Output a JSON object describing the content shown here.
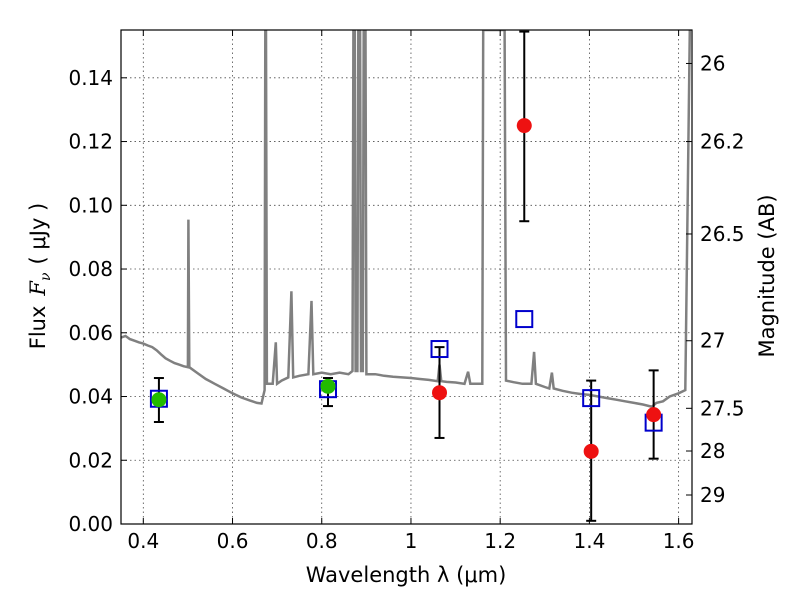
{
  "chart_data": {
    "type": "scatter",
    "xlabel": "Wavelength  λ (μm)",
    "ylabel": "Flux  F_ν  ( μJy )",
    "ylabel_parts": {
      "prefix": "Flux",
      "symbol": "F",
      "subscript": "ν",
      "unit": "( μJy )"
    },
    "y2label": "Magnitude (AB)",
    "xlim": [
      0.35,
      1.63
    ],
    "ylim": [
      0.0,
      0.155
    ],
    "grid": true,
    "x_ticks": [
      {
        "value": 0.4,
        "label": "0.4"
      },
      {
        "value": 0.6,
        "label": "0.6"
      },
      {
        "value": 0.8,
        "label": "0.8"
      },
      {
        "value": 1.0,
        "label": "1"
      },
      {
        "value": 1.2,
        "label": "1.2"
      },
      {
        "value": 1.4,
        "label": "1.4"
      },
      {
        "value": 1.6,
        "label": "1.6"
      }
    ],
    "y_ticks": [
      {
        "value": 0.0,
        "label": "0.00"
      },
      {
        "value": 0.02,
        "label": "0.02"
      },
      {
        "value": 0.04,
        "label": "0.04"
      },
      {
        "value": 0.06,
        "label": "0.06"
      },
      {
        "value": 0.08,
        "label": "0.08"
      },
      {
        "value": 0.1,
        "label": "0.10"
      },
      {
        "value": 0.12,
        "label": "0.12"
      },
      {
        "value": 0.14,
        "label": "0.14"
      }
    ],
    "y2_ticks": [
      {
        "flux": 0.1445,
        "label": "26"
      },
      {
        "flux": 0.12,
        "label": "26.2"
      },
      {
        "flux": 0.091,
        "label": "26.5"
      },
      {
        "flux": 0.0575,
        "label": "27"
      },
      {
        "flux": 0.0363,
        "label": "27.5"
      },
      {
        "flux": 0.0229,
        "label": "28"
      },
      {
        "flux": 0.0091,
        "label": "29"
      }
    ],
    "colors": {
      "template": "#808080",
      "model": "#0000cc",
      "detection": "#22bb00",
      "measurement": "#ee1111",
      "errorbar": "#000000"
    },
    "template_spectrum": [
      [
        0.35,
        0.0585
      ],
      [
        0.36,
        0.059
      ],
      [
        0.37,
        0.058
      ],
      [
        0.38,
        0.0575
      ],
      [
        0.39,
        0.057
      ],
      [
        0.4,
        0.0566
      ],
      [
        0.41,
        0.056
      ],
      [
        0.42,
        0.0555
      ],
      [
        0.43,
        0.0545
      ],
      [
        0.44,
        0.0532
      ],
      [
        0.45,
        0.052
      ],
      [
        0.46,
        0.0512
      ],
      [
        0.47,
        0.0505
      ],
      [
        0.48,
        0.05
      ],
      [
        0.49,
        0.0495
      ],
      [
        0.5,
        0.0492
      ],
      [
        0.501,
        0.0955
      ],
      [
        0.503,
        0.0492
      ],
      [
        0.52,
        0.0475
      ],
      [
        0.54,
        0.0455
      ],
      [
        0.56,
        0.044
      ],
      [
        0.58,
        0.0425
      ],
      [
        0.6,
        0.041
      ],
      [
        0.62,
        0.0397
      ],
      [
        0.64,
        0.0387
      ],
      [
        0.655,
        0.038
      ],
      [
        0.665,
        0.0378
      ],
      [
        0.672,
        0.042
      ],
      [
        0.6735,
        0.155
      ],
      [
        0.675,
        0.155
      ],
      [
        0.677,
        0.044
      ],
      [
        0.69,
        0.044
      ],
      [
        0.697,
        0.057
      ],
      [
        0.7,
        0.044
      ],
      [
        0.71,
        0.045
      ],
      [
        0.725,
        0.046
      ],
      [
        0.732,
        0.073
      ],
      [
        0.736,
        0.046
      ],
      [
        0.75,
        0.0465
      ],
      [
        0.77,
        0.047
      ],
      [
        0.777,
        0.07
      ],
      [
        0.781,
        0.047
      ],
      [
        0.8,
        0.0475
      ],
      [
        0.82,
        0.047
      ],
      [
        0.84,
        0.0475
      ],
      [
        0.86,
        0.047
      ],
      [
        0.869,
        0.048
      ],
      [
        0.871,
        0.155
      ],
      [
        0.874,
        0.155
      ],
      [
        0.876,
        0.048
      ],
      [
        0.88,
        0.048
      ],
      [
        0.882,
        0.155
      ],
      [
        0.886,
        0.155
      ],
      [
        0.888,
        0.048
      ],
      [
        0.892,
        0.048
      ],
      [
        0.894,
        0.155
      ],
      [
        0.898,
        0.155
      ],
      [
        0.9,
        0.047
      ],
      [
        0.92,
        0.047
      ],
      [
        0.94,
        0.0465
      ],
      [
        0.96,
        0.0462
      ],
      [
        0.98,
        0.046
      ],
      [
        1.0,
        0.0458
      ],
      [
        1.02,
        0.0455
      ],
      [
        1.04,
        0.0452
      ],
      [
        1.06,
        0.0448
      ],
      [
        1.064,
        0.05
      ],
      [
        1.068,
        0.0448
      ],
      [
        1.08,
        0.0446
      ],
      [
        1.1,
        0.0444
      ],
      [
        1.12,
        0.044
      ],
      [
        1.128,
        0.0478
      ],
      [
        1.133,
        0.044
      ],
      [
        1.15,
        0.044
      ],
      [
        1.16,
        0.044
      ],
      [
        1.162,
        0.155
      ],
      [
        1.168,
        0.155
      ],
      [
        1.17,
        0.155
      ],
      [
        1.19,
        0.155
      ],
      [
        1.196,
        0.155
      ],
      [
        1.2,
        0.155
      ],
      [
        1.21,
        0.155
      ],
      [
        1.213,
        0.045
      ],
      [
        1.23,
        0.0445
      ],
      [
        1.25,
        0.044
      ],
      [
        1.27,
        0.044
      ],
      [
        1.276,
        0.054
      ],
      [
        1.28,
        0.044
      ],
      [
        1.3,
        0.043
      ],
      [
        1.31,
        0.0425
      ],
      [
        1.316,
        0.0475
      ],
      [
        1.32,
        0.0425
      ],
      [
        1.34,
        0.0418
      ],
      [
        1.36,
        0.0412
      ],
      [
        1.38,
        0.0408
      ],
      [
        1.4,
        0.0405
      ],
      [
        1.42,
        0.04
      ],
      [
        1.44,
        0.0395
      ],
      [
        1.46,
        0.039
      ],
      [
        1.48,
        0.0385
      ],
      [
        1.5,
        0.038
      ],
      [
        1.52,
        0.0375
      ],
      [
        1.54,
        0.0368
      ],
      [
        1.55,
        0.038
      ],
      [
        1.565,
        0.0385
      ],
      [
        1.58,
        0.04
      ],
      [
        1.6,
        0.041
      ],
      [
        1.615,
        0.042
      ],
      [
        1.625,
        0.155
      ]
    ],
    "series": [
      {
        "marker": "open-square",
        "points": [
          {
            "x": 0.435,
            "y": 0.0393
          },
          {
            "x": 0.814,
            "y": 0.0423
          },
          {
            "x": 1.064,
            "y": 0.0549
          },
          {
            "x": 1.254,
            "y": 0.0643
          },
          {
            "x": 1.404,
            "y": 0.0395
          },
          {
            "x": 1.544,
            "y": 0.0318
          }
        ]
      },
      {
        "marker": "filled-circle",
        "color_key": "detection",
        "points": [
          {
            "x": 0.435,
            "y": 0.039,
            "ylo": 0.032,
            "yhi": 0.0458
          },
          {
            "x": 0.814,
            "y": 0.0432,
            "ylo": 0.037,
            "yhi": 0.0458
          }
        ]
      },
      {
        "marker": "filled-circle",
        "color_key": "measurement",
        "points": [
          {
            "x": 1.064,
            "y": 0.0412,
            "ylo": 0.027,
            "yhi": 0.0555
          },
          {
            "x": 1.254,
            "y": 0.125,
            "ylo": 0.095,
            "yhi": 0.1545
          },
          {
            "x": 1.404,
            "y": 0.0228,
            "ylo": 0.001,
            "yhi": 0.045
          },
          {
            "x": 1.544,
            "y": 0.0343,
            "ylo": 0.0205,
            "yhi": 0.0482
          }
        ]
      }
    ]
  }
}
